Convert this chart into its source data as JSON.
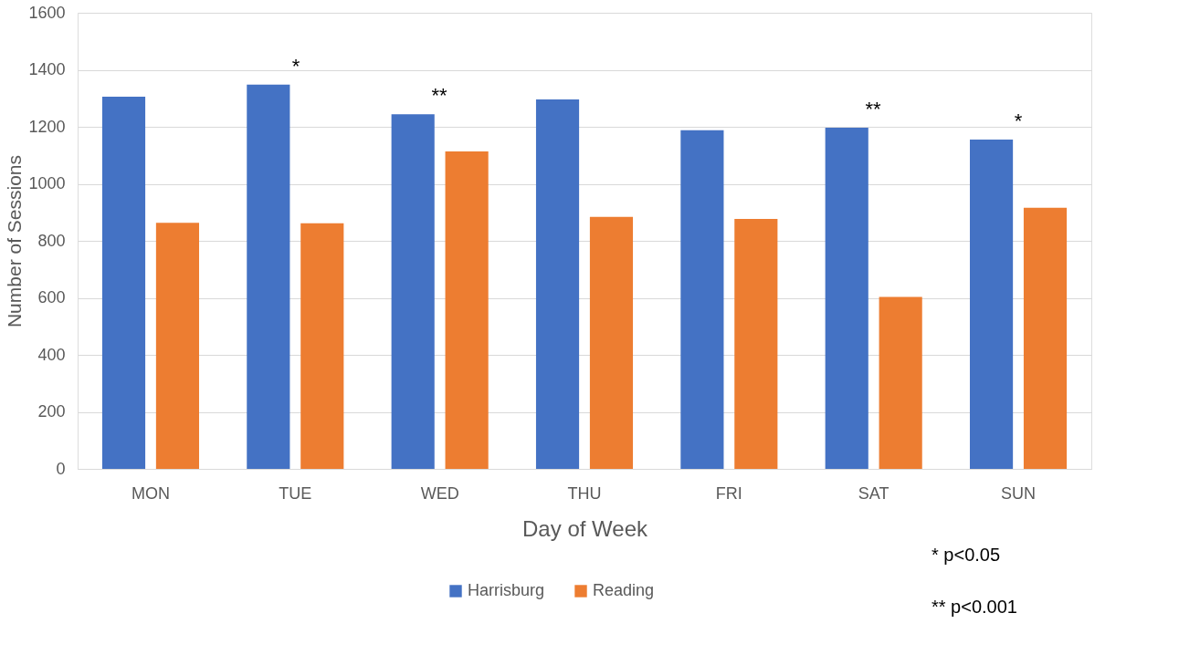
{
  "chart_data": {
    "type": "bar",
    "xlabel": "Day of Week",
    "ylabel": "Number of Sessions",
    "categories": [
      "MON",
      "TUE",
      "WED",
      "THU",
      "FRI",
      "SAT",
      "SUN"
    ],
    "series": [
      {
        "name": "Harrisburg",
        "color": "#4472c4",
        "values": [
          1306,
          1348,
          1244,
          1296,
          1188,
          1197,
          1155
        ]
      },
      {
        "name": "Reading",
        "color": "#ed7d31",
        "values": [
          863,
          862,
          1114,
          884,
          877,
          603,
          916
        ]
      }
    ],
    "ylim": [
      0,
      1600
    ],
    "yticks": [
      0,
      200,
      400,
      600,
      800,
      1000,
      1200,
      1400,
      1600
    ],
    "grid": "y",
    "legend": "bottom",
    "annotations": [
      "*",
      "**",
      "**",
      "*",
      "* p<0.05",
      "** p<0.001"
    ]
  }
}
